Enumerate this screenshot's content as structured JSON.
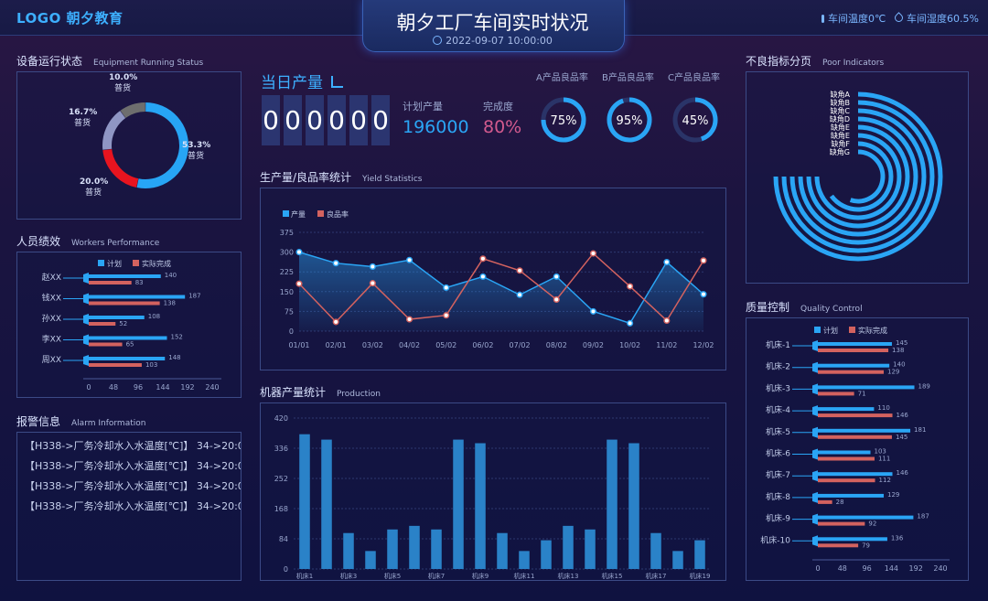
{
  "header": {
    "logo": "LOGO 朝夕教育",
    "title": "朝夕工厂车间实时状况",
    "datetime": "2022-09-07 10:00:00",
    "temperature": "车间温度0℃",
    "humidity": "车间湿度60.5%"
  },
  "equipment": {
    "title": "设备运行状态",
    "subtitle": "Equipment Running Status",
    "slices": [
      {
        "pct": "53.3%",
        "label": "普货",
        "value": 53.3,
        "color": "#27a5f5"
      },
      {
        "pct": "20.0%",
        "label": "普货",
        "value": 20.0,
        "color": "#e8141f"
      },
      {
        "pct": "16.7%",
        "label": "普货",
        "value": 16.7,
        "color": "#8f96c4"
      },
      {
        "pct": "10.0%",
        "label": "普货",
        "value": 10.0,
        "color": "#6e6e6e"
      }
    ]
  },
  "workers": {
    "title": "人员绩效",
    "subtitle": "Workers Performance",
    "legend_plan": "计划",
    "legend_actual": "实际完成",
    "axis": [
      "0",
      "48",
      "96",
      "144",
      "192",
      "240"
    ],
    "max": 240,
    "rows": [
      {
        "name": "赵XX",
        "plan": 140,
        "actual": 83
      },
      {
        "name": "钱XX",
        "plan": 187,
        "actual": 138
      },
      {
        "name": "孙XX",
        "plan": 108,
        "actual": 52
      },
      {
        "name": "李XX",
        "plan": 152,
        "actual": 65
      },
      {
        "name": "周XX",
        "plan": 148,
        "actual": 103
      }
    ]
  },
  "alarm": {
    "title": "报警信息",
    "subtitle": "Alarm Information",
    "lines": [
      "【H338->厂务冷却水入水温度[℃]】 34->20:0",
      "【H338->厂务冷却水入水温度[℃]】 34->20:0",
      "【H338->厂务冷却水入水温度[℃]】 34->20:0",
      "【H338->厂务冷却水入水温度[℃]】 34->20:0"
    ]
  },
  "output": {
    "title": "当日产量",
    "digits": [
      "0",
      "0",
      "0",
      "0",
      "0",
      "0"
    ],
    "plan_label": "计划产量",
    "plan_value": "196000",
    "completion_label": "完成度",
    "completion_value": "80%",
    "rates": [
      {
        "label": "A产品良品率",
        "value": "75%",
        "pct": 75
      },
      {
        "label": "B产品良品率",
        "value": "95%",
        "pct": 95
      },
      {
        "label": "C产品良品率",
        "value": "45%",
        "pct": 45
      }
    ]
  },
  "yield": {
    "title": "生产量/良品率统计",
    "subtitle": "Yield Statistics",
    "legend_output": "产量",
    "legend_rate": "良品率",
    "colors": {
      "output": "#2aa5f5",
      "rate": "#d3625f"
    },
    "chart_data": {
      "type": "line",
      "categories": [
        "01/01",
        "02/01",
        "03/02",
        "04/02",
        "05/02",
        "06/02",
        "07/02",
        "08/02",
        "09/02",
        "10/02",
        "11/02",
        "12/02"
      ],
      "yticks": [
        "0",
        "75",
        "150",
        "225",
        "300",
        "375"
      ],
      "ylim": [
        0,
        375
      ],
      "series": [
        {
          "name": "产量",
          "values": [
            300,
            258,
            245,
            270,
            165,
            207,
            138,
            207,
            75,
            30,
            262,
            140
          ]
        },
        {
          "name": "良品率",
          "values": [
            180,
            35,
            182,
            45,
            60,
            275,
            230,
            120,
            295,
            170,
            40,
            268
          ]
        }
      ]
    }
  },
  "production": {
    "title": "机器产量统计",
    "subtitle": "Production",
    "chart_data": {
      "type": "bar",
      "categories": [
        "机床1",
        "机床2",
        "机床3",
        "机床4",
        "机床5",
        "机床6",
        "机床7",
        "机床8",
        "机床9",
        "机床10",
        "机床11",
        "机床12",
        "机床13",
        "机床14",
        "机床15",
        "机床16",
        "机床17",
        "机床18",
        "机床19"
      ],
      "shown_labels": [
        "机床1",
        "机床3",
        "机床5",
        "机床7",
        "机床9",
        "机床11",
        "机床13",
        "机床15",
        "机床17",
        "机床19"
      ],
      "values": [
        375,
        360,
        100,
        50,
        110,
        120,
        110,
        360,
        350,
        100,
        50,
        80,
        120,
        110,
        360,
        350,
        100,
        50,
        80
      ],
      "yticks": [
        "0",
        "84",
        "168",
        "252",
        "336",
        "420"
      ],
      "ylim": [
        0,
        420
      ]
    }
  },
  "poor": {
    "title": "不良指标分页",
    "subtitle": "Poor Indicators",
    "items": [
      {
        "label": "缺角A",
        "pct": 0.75
      },
      {
        "label": "缺角B",
        "pct": 0.75
      },
      {
        "label": "缺角C",
        "pct": 0.75
      },
      {
        "label": "缺角D",
        "pct": 0.75
      },
      {
        "label": "缺角E",
        "pct": 0.75
      },
      {
        "label": "缺角E",
        "pct": 0.75
      },
      {
        "label": "缺角F",
        "pct": 0.65
      },
      {
        "label": "缺角G",
        "pct": 0.55
      }
    ]
  },
  "quality": {
    "title": "质量控制",
    "subtitle": "Quality Control",
    "legend_plan": "计划",
    "legend_actual": "实际完成",
    "axis": [
      "0",
      "48",
      "96",
      "144",
      "192",
      "240"
    ],
    "max": 240,
    "rows": [
      {
        "name": "机床-1",
        "plan": 145,
        "actual": 138
      },
      {
        "name": "机床-2",
        "plan": 140,
        "actual": 129
      },
      {
        "name": "机床-3",
        "plan": 189,
        "actual": 71
      },
      {
        "name": "机床-4",
        "plan": 110,
        "actual": 146
      },
      {
        "name": "机床-5",
        "plan": 181,
        "actual": 145
      },
      {
        "name": "机床-6",
        "plan": 103,
        "actual": 111
      },
      {
        "name": "机床-7",
        "plan": 146,
        "actual": 112
      },
      {
        "name": "机床-8",
        "plan": 129,
        "actual": 28
      },
      {
        "name": "机床-9",
        "plan": 187,
        "actual": 92
      },
      {
        "name": "机床-10",
        "plan": 136,
        "actual": 79
      }
    ]
  }
}
